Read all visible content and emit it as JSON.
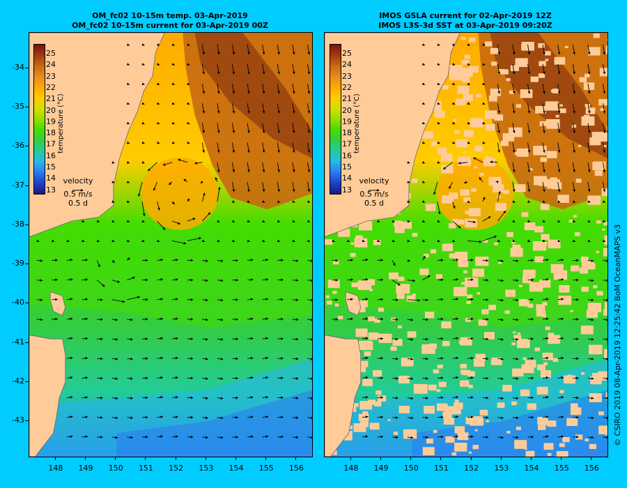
{
  "left_panel": {
    "title_line1": "OM_fc02 10-15m temp. 03-Apr-2019",
    "title_line2": "OM_fc02 10-15m current for 03-Apr-2019 00Z"
  },
  "right_panel": {
    "title_line1": "IMOS GSLA current for 02-Apr-2019 12Z",
    "title_line2": "IMOS L3S-3d SST at 03-Apr-2019 09:20Z"
  },
  "axes": {
    "lat_labels": [
      "-34",
      "-35",
      "-36",
      "-37",
      "-38",
      "-39",
      "-40",
      "-41",
      "-42",
      "-43"
    ],
    "lon_labels": [
      "148",
      "149",
      "150",
      "151",
      "152",
      "153",
      "154",
      "155",
      "156"
    ],
    "lat_range": [
      -43.9,
      -33.1
    ],
    "lon_range": [
      147.1,
      156.5
    ]
  },
  "colorbar": {
    "title": "temperature (°C)",
    "labels": [
      "25",
      "24",
      "23",
      "22",
      "21",
      "20",
      "19",
      "18",
      "17",
      "16",
      "15",
      "14",
      "13"
    ],
    "range": [
      12.5,
      25.9
    ],
    "colors": [
      "#1a1a80",
      "#1f3fc8",
      "#2b7af0",
      "#27b8e8",
      "#22cc99",
      "#33cc44",
      "#44dd00",
      "#99dd00",
      "#d6dd00",
      "#ffcc00",
      "#ffaa00",
      "#e88a20",
      "#c86a10",
      "#a03a10",
      "#801010"
    ]
  },
  "velocity_legend": {
    "title": "velocity",
    "speed": "0.5 m/s",
    "time": "0.5 d"
  },
  "credit": "© CSIRO 2019   08-Apr-2019 12:25:42 BoM OceanMAPS v3",
  "colors": {
    "background": "#00ccff",
    "land": "#ffcc99",
    "warm_core": "#a04a10",
    "eddy": "#ffaa00"
  }
}
